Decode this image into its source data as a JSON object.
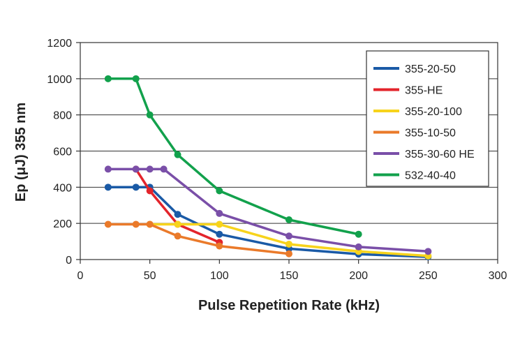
{
  "chart_data": {
    "type": "line",
    "xlabel": "Pulse Repetition Rate (kHz)",
    "ylabel": "Ep (μJ) 355 nm",
    "xlim": [
      0,
      300
    ],
    "ylim": [
      0,
      1200
    ],
    "xticks": [
      0,
      50,
      100,
      150,
      200,
      250,
      300
    ],
    "yticks": [
      0,
      200,
      400,
      600,
      800,
      1000,
      1200
    ],
    "grid": "horizontal",
    "legend_position": "top-right",
    "series": [
      {
        "name": "355-20-50",
        "color": "#1a5aa6",
        "points": [
          [
            20,
            400
          ],
          [
            40,
            400
          ],
          [
            50,
            400
          ],
          [
            70,
            250
          ],
          [
            100,
            140
          ],
          [
            150,
            60
          ],
          [
            200,
            30
          ],
          [
            250,
            15
          ]
        ]
      },
      {
        "name": "355-HE",
        "color": "#e3242b",
        "points": [
          [
            40,
            500
          ],
          [
            50,
            380
          ],
          [
            70,
            195
          ],
          [
            100,
            95
          ]
        ]
      },
      {
        "name": "355-20-100",
        "color": "#f7d31c",
        "points": [
          [
            50,
            195
          ],
          [
            70,
            195
          ],
          [
            100,
            195
          ],
          [
            150,
            85
          ],
          [
            200,
            45
          ],
          [
            250,
            20
          ]
        ]
      },
      {
        "name": "355-10-50",
        "color": "#ea7a2a",
        "points": [
          [
            20,
            195
          ],
          [
            40,
            195
          ],
          [
            50,
            195
          ],
          [
            70,
            130
          ],
          [
            100,
            75
          ],
          [
            150,
            32
          ]
        ]
      },
      {
        "name": "355-30-60 HE",
        "color": "#7a4fa8",
        "points": [
          [
            20,
            500
          ],
          [
            40,
            500
          ],
          [
            50,
            500
          ],
          [
            60,
            500
          ],
          [
            100,
            255
          ],
          [
            150,
            130
          ],
          [
            200,
            70
          ],
          [
            250,
            45
          ]
        ]
      },
      {
        "name": "532-40-40",
        "color": "#12a14c",
        "points": [
          [
            20,
            1000
          ],
          [
            40,
            1000
          ],
          [
            50,
            800
          ],
          [
            70,
            580
          ],
          [
            100,
            380
          ],
          [
            150,
            220
          ],
          [
            200,
            140
          ]
        ]
      }
    ]
  }
}
